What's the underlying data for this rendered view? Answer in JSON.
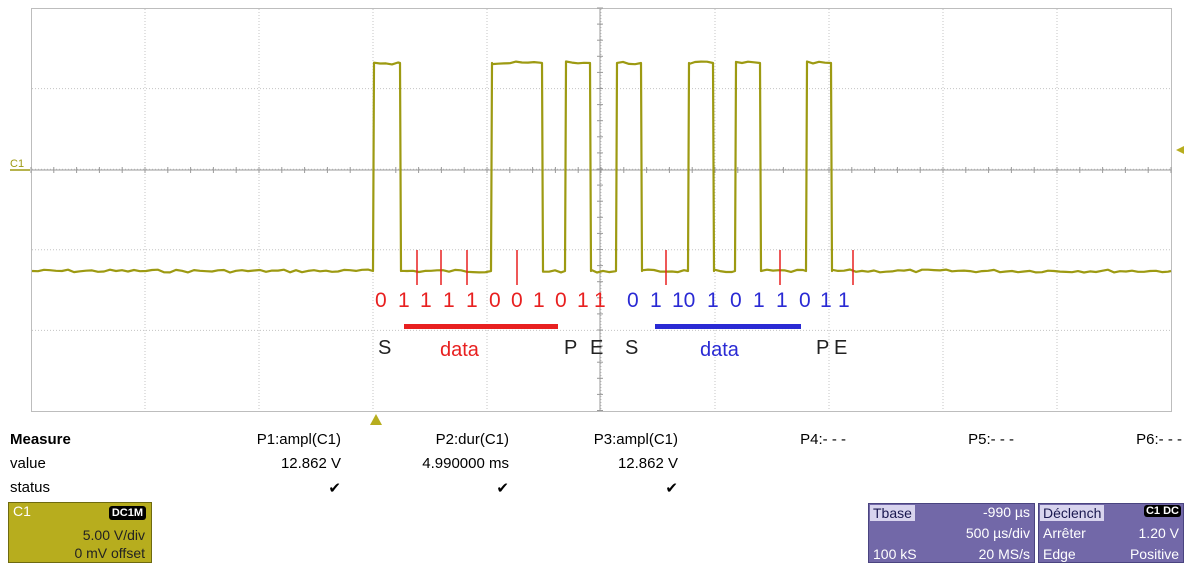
{
  "channel": {
    "trace_label": "C1",
    "badge_label": "C1",
    "coupling": "DC1M",
    "volts_div": "5.00 V/div",
    "offset": "0 mV offset",
    "trace_color": "#9d9a12"
  },
  "decode": {
    "bits_red": [
      "0",
      "1",
      "1",
      "1",
      "1",
      "0",
      "0",
      "1",
      "0",
      "1"
    ],
    "bits_red_trail": "1",
    "bits_blue": [
      "0",
      "1",
      "10",
      "1",
      "0",
      "1",
      "1",
      "0",
      "1"
    ],
    "bits_blue_trail": "1",
    "red_color": "#e82020",
    "blue_color": "#2a2ad4",
    "markers_first": {
      "s": "S",
      "data": "data",
      "p": "P",
      "e": "E"
    },
    "markers_second": {
      "s": "S",
      "data": "data",
      "p": "P",
      "e": "E"
    }
  },
  "measure": {
    "title": "Measure",
    "row_value": "value",
    "row_status": "status",
    "params": [
      {
        "name": "P1:ampl(C1)",
        "value": "12.862 V",
        "status": "✔"
      },
      {
        "name": "P2:dur(C1)",
        "value": "4.990000 ms",
        "status": "✔"
      },
      {
        "name": "P3:ampl(C1)",
        "value": "12.862 V",
        "status": "✔"
      },
      {
        "name": "P4:- - -",
        "value": "",
        "status": ""
      },
      {
        "name": "P5:- - -",
        "value": "",
        "status": ""
      },
      {
        "name": "P6:- - -",
        "value": "",
        "status": ""
      }
    ]
  },
  "timebase": {
    "label": "Tbase",
    "delay": "-990 µs",
    "per_div": "500 µs/div",
    "samples": "100 kS",
    "rate": "20 MS/s"
  },
  "trigger": {
    "label": "Déclench",
    "source_tag": "C1 DC",
    "mode": "Arrêter",
    "level": "1.20 V",
    "type": "Edge",
    "slope": "Positive"
  }
}
